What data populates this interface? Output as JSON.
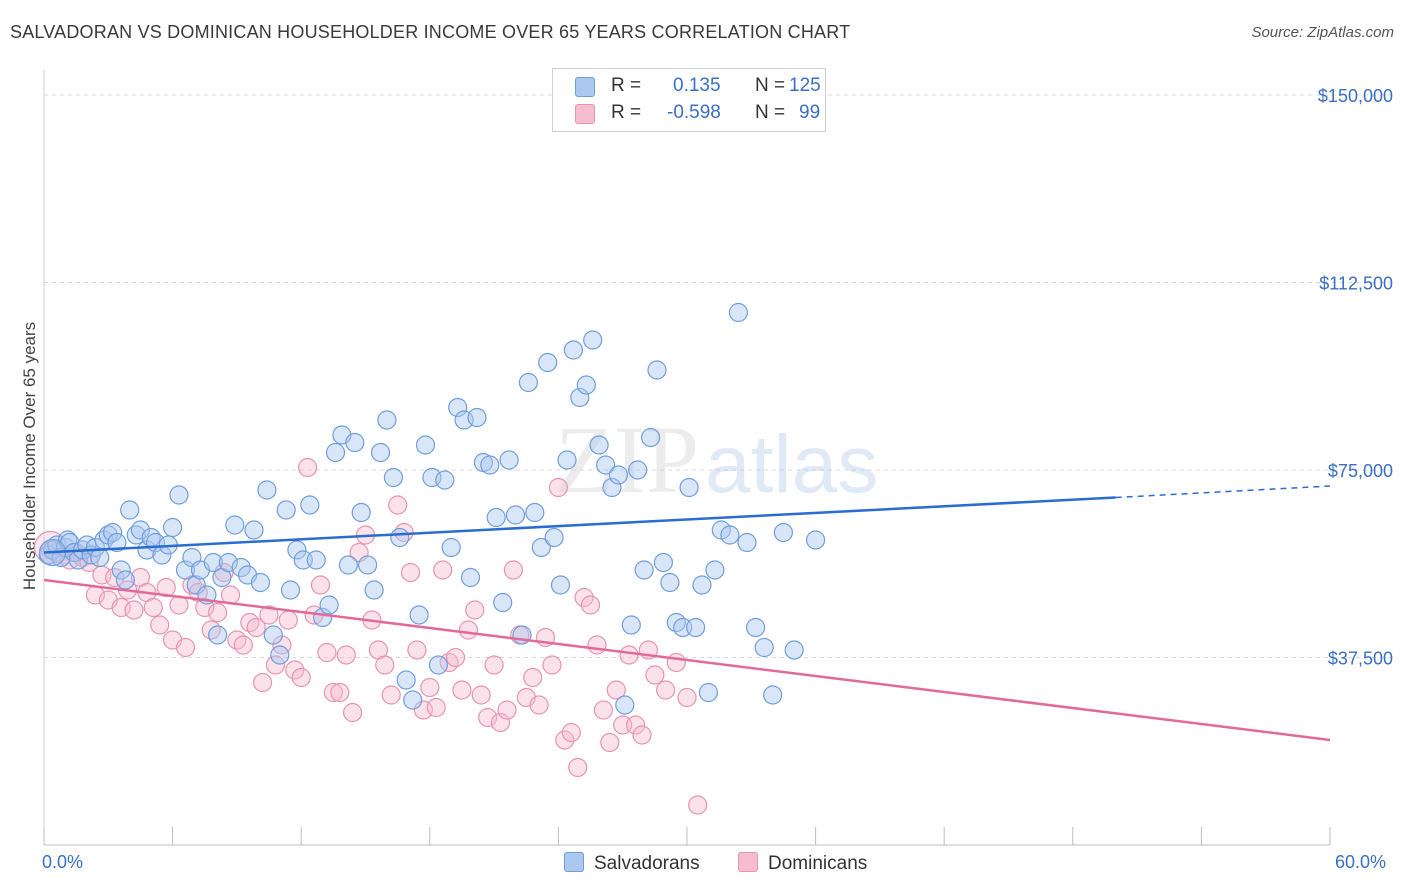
{
  "title": "SALVADORAN VS DOMINICAN HOUSEHOLDER INCOME OVER 65 YEARS CORRELATION CHART",
  "source": "Source: ZipAtlas.com",
  "watermark": {
    "zip": "ZIP",
    "atlas": "atlas"
  },
  "colors": {
    "blue_fill": "#aac8f0",
    "blue_stroke": "#6f9edb",
    "blue_line": "#2a6dd0",
    "pink_fill": "#f6bcd0",
    "pink_stroke": "#e893b2",
    "pink_line": "#e06a98",
    "grid": "#d8d8d8",
    "tick_text": "#3a6fc4"
  },
  "legend": {
    "r_label": "R =",
    "n_label": "N =",
    "rows": [
      {
        "r": "0.135",
        "n": "125",
        "color": "blue"
      },
      {
        "r": "-0.598",
        "n": "99",
        "color": "pink"
      }
    ]
  },
  "bottom_legend": [
    "Salvadorans",
    "Dominicans"
  ],
  "chart_data": {
    "type": "scatter",
    "title": "SALVADORAN VS DOMINICAN HOUSEHOLDER INCOME OVER 65 YEARS CORRELATION CHART",
    "xlabel": "",
    "ylabel": "Householder Income Over 65 years",
    "xlim": [
      0,
      60
    ],
    "ylim": [
      0,
      155000
    ],
    "x_tick_labels": [
      "0.0%",
      "60.0%"
    ],
    "y_ticks": [
      37500,
      75000,
      112500,
      150000
    ],
    "y_tick_labels": [
      "$37,500",
      "$75,000",
      "$112,500",
      "$150,000"
    ],
    "grid": "horizontal dashed",
    "legend_placement": "top-center",
    "series": [
      {
        "name": "Salvadorans",
        "color": "blue",
        "trend": {
          "x": [
            0,
            50
          ],
          "y": [
            58500,
            69500
          ],
          "dashed_to_x": 60,
          "dashed_to_y": 71800
        },
        "points": [
          [
            0.2,
            58000
          ],
          [
            0.4,
            59000
          ],
          [
            0.6,
            60000
          ],
          [
            0.8,
            57500
          ],
          [
            1.0,
            59500
          ],
          [
            1.1,
            61000
          ],
          [
            1.2,
            60500
          ],
          [
            1.4,
            58500
          ],
          [
            1.6,
            57000
          ],
          [
            1.8,
            59000
          ],
          [
            2.0,
            60000
          ],
          [
            2.2,
            58000
          ],
          [
            2.4,
            59500
          ],
          [
            2.6,
            57500
          ],
          [
            2.8,
            61000
          ],
          [
            3.0,
            62000
          ],
          [
            3.2,
            62500
          ],
          [
            3.4,
            60500
          ],
          [
            3.6,
            55000
          ],
          [
            3.8,
            53000
          ],
          [
            4.0,
            67000
          ],
          [
            4.3,
            62000
          ],
          [
            4.5,
            63000
          ],
          [
            4.8,
            59000
          ],
          [
            5.0,
            61500
          ],
          [
            5.2,
            60500
          ],
          [
            5.5,
            58000
          ],
          [
            5.8,
            60000
          ],
          [
            6.0,
            63500
          ],
          [
            6.3,
            70000
          ],
          [
            6.6,
            55000
          ],
          [
            6.9,
            57500
          ],
          [
            7.1,
            52000
          ],
          [
            7.3,
            55000
          ],
          [
            7.6,
            50000
          ],
          [
            7.9,
            56500
          ],
          [
            8.1,
            42000
          ],
          [
            8.3,
            53500
          ],
          [
            8.6,
            56500
          ],
          [
            8.9,
            64000
          ],
          [
            9.2,
            55500
          ],
          [
            9.5,
            54000
          ],
          [
            9.8,
            63000
          ],
          [
            10.1,
            52500
          ],
          [
            10.4,
            71000
          ],
          [
            10.7,
            42000
          ],
          [
            11.0,
            38000
          ],
          [
            11.3,
            67000
          ],
          [
            11.5,
            51000
          ],
          [
            11.8,
            59000
          ],
          [
            12.1,
            57000
          ],
          [
            12.4,
            68000
          ],
          [
            12.7,
            57000
          ],
          [
            13.0,
            45500
          ],
          [
            13.3,
            48000
          ],
          [
            13.6,
            78500
          ],
          [
            13.9,
            82000
          ],
          [
            14.2,
            56000
          ],
          [
            14.5,
            80500
          ],
          [
            14.8,
            66500
          ],
          [
            15.1,
            56000
          ],
          [
            15.4,
            51000
          ],
          [
            15.7,
            78500
          ],
          [
            16.0,
            85000
          ],
          [
            16.3,
            73500
          ],
          [
            16.6,
            61500
          ],
          [
            16.9,
            33000
          ],
          [
            17.2,
            29000
          ],
          [
            17.5,
            46000
          ],
          [
            17.8,
            80000
          ],
          [
            18.1,
            73500
          ],
          [
            18.4,
            36000
          ],
          [
            18.7,
            73000
          ],
          [
            19.0,
            59500
          ],
          [
            19.3,
            87500
          ],
          [
            19.6,
            85000
          ],
          [
            19.9,
            53500
          ],
          [
            20.2,
            85500
          ],
          [
            20.5,
            76500
          ],
          [
            20.8,
            76000
          ],
          [
            21.1,
            65500
          ],
          [
            21.4,
            48500
          ],
          [
            21.7,
            77000
          ],
          [
            22.0,
            66000
          ],
          [
            22.3,
            42000
          ],
          [
            22.6,
            92500
          ],
          [
            22.9,
            66500
          ],
          [
            23.2,
            59500
          ],
          [
            23.5,
            96500
          ],
          [
            23.8,
            61500
          ],
          [
            24.1,
            52000
          ],
          [
            24.4,
            77000
          ],
          [
            24.7,
            99000
          ],
          [
            25.0,
            89500
          ],
          [
            25.3,
            92000
          ],
          [
            25.6,
            101000
          ],
          [
            25.9,
            80000
          ],
          [
            26.2,
            76000
          ],
          [
            26.5,
            71500
          ],
          [
            26.8,
            74000
          ],
          [
            27.1,
            28000
          ],
          [
            27.4,
            44000
          ],
          [
            27.7,
            75000
          ],
          [
            28.0,
            55000
          ],
          [
            28.3,
            81500
          ],
          [
            28.6,
            95000
          ],
          [
            28.9,
            56500
          ],
          [
            29.2,
            52500
          ],
          [
            29.5,
            44500
          ],
          [
            29.8,
            43500
          ],
          [
            30.1,
            71500
          ],
          [
            30.4,
            43500
          ],
          [
            30.7,
            52000
          ],
          [
            31.0,
            30500
          ],
          [
            31.3,
            55000
          ],
          [
            31.6,
            63000
          ],
          [
            32.0,
            62000
          ],
          [
            32.4,
            106500
          ],
          [
            32.8,
            60500
          ],
          [
            33.2,
            43500
          ],
          [
            33.6,
            39500
          ],
          [
            34.0,
            30000
          ],
          [
            34.5,
            62500
          ],
          [
            35.0,
            39000
          ],
          [
            36.0,
            61000
          ]
        ]
      },
      {
        "name": "Dominicans",
        "color": "pink",
        "trend": {
          "x": [
            0,
            60
          ],
          "y": [
            53000,
            21000
          ]
        },
        "points": [
          [
            0.3,
            59000
          ],
          [
            0.6,
            58500
          ],
          [
            0.9,
            58000
          ],
          [
            1.2,
            57000
          ],
          [
            1.5,
            58500
          ],
          [
            1.8,
            57500
          ],
          [
            2.1,
            56500
          ],
          [
            2.4,
            50000
          ],
          [
            2.7,
            54000
          ],
          [
            3.0,
            49000
          ],
          [
            3.3,
            53500
          ],
          [
            3.6,
            47500
          ],
          [
            3.9,
            51000
          ],
          [
            4.2,
            47000
          ],
          [
            4.5,
            53500
          ],
          [
            4.8,
            50500
          ],
          [
            5.1,
            47500
          ],
          [
            5.4,
            44000
          ],
          [
            5.7,
            51500
          ],
          [
            6.0,
            41000
          ],
          [
            6.3,
            48000
          ],
          [
            6.6,
            39500
          ],
          [
            6.9,
            52000
          ],
          [
            7.2,
            50500
          ],
          [
            7.5,
            47500
          ],
          [
            7.8,
            43000
          ],
          [
            8.1,
            46500
          ],
          [
            8.4,
            54500
          ],
          [
            8.7,
            50000
          ],
          [
            9.0,
            41000
          ],
          [
            9.3,
            40000
          ],
          [
            9.6,
            44500
          ],
          [
            9.9,
            43500
          ],
          [
            10.2,
            32500
          ],
          [
            10.5,
            46000
          ],
          [
            10.8,
            36000
          ],
          [
            11.1,
            40000
          ],
          [
            11.4,
            45000
          ],
          [
            11.7,
            35000
          ],
          [
            12.0,
            33500
          ],
          [
            12.3,
            75500
          ],
          [
            12.6,
            46000
          ],
          [
            12.9,
            52000
          ],
          [
            13.2,
            38500
          ],
          [
            13.5,
            30500
          ],
          [
            13.8,
            30500
          ],
          [
            14.1,
            38000
          ],
          [
            14.4,
            26500
          ],
          [
            14.7,
            58500
          ],
          [
            15.0,
            62000
          ],
          [
            15.3,
            45000
          ],
          [
            15.6,
            39000
          ],
          [
            15.9,
            36000
          ],
          [
            16.2,
            30000
          ],
          [
            16.5,
            68000
          ],
          [
            16.8,
            62500
          ],
          [
            17.1,
            54500
          ],
          [
            17.4,
            39000
          ],
          [
            17.7,
            27000
          ],
          [
            18.0,
            31500
          ],
          [
            18.3,
            27500
          ],
          [
            18.6,
            55000
          ],
          [
            18.9,
            36500
          ],
          [
            19.2,
            37500
          ],
          [
            19.5,
            31000
          ],
          [
            19.8,
            43000
          ],
          [
            20.1,
            47000
          ],
          [
            20.4,
            30000
          ],
          [
            20.7,
            25500
          ],
          [
            21.0,
            36000
          ],
          [
            21.3,
            24500
          ],
          [
            21.6,
            27000
          ],
          [
            21.9,
            55000
          ],
          [
            22.2,
            42000
          ],
          [
            22.5,
            29500
          ],
          [
            22.8,
            33500
          ],
          [
            23.1,
            28000
          ],
          [
            23.4,
            41500
          ],
          [
            23.7,
            36000
          ],
          [
            24.0,
            71500
          ],
          [
            24.3,
            21000
          ],
          [
            24.6,
            22500
          ],
          [
            24.9,
            15500
          ],
          [
            25.2,
            49500
          ],
          [
            25.5,
            48000
          ],
          [
            25.8,
            40000
          ],
          [
            26.1,
            27000
          ],
          [
            26.4,
            20500
          ],
          [
            26.7,
            31000
          ],
          [
            27.0,
            24000
          ],
          [
            27.3,
            38000
          ],
          [
            27.6,
            24000
          ],
          [
            27.9,
            22000
          ],
          [
            28.2,
            39000
          ],
          [
            28.5,
            34000
          ],
          [
            29.0,
            31000
          ],
          [
            29.5,
            36500
          ],
          [
            30.0,
            29500
          ],
          [
            30.5,
            8000
          ]
        ]
      }
    ]
  }
}
